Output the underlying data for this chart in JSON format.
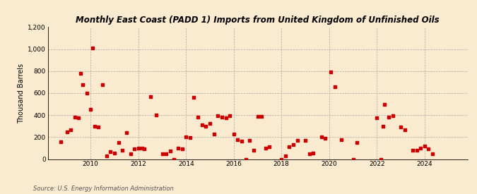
{
  "title": "Monthly East Coast (PADD 1) Imports from United Kingdom of Unfinished Oils",
  "ylabel": "Thousand Barrels",
  "source": "Source: U.S. Energy Information Administration",
  "background_color": "#faebd0",
  "plot_background_color": "#faebd0",
  "marker_color": "#cc0000",
  "marker_size": 6,
  "ylim": [
    0,
    1200
  ],
  "yticks": [
    0,
    200,
    400,
    600,
    800,
    1000,
    1200
  ],
  "ytick_labels": [
    "0",
    "200",
    "400",
    "600",
    "800",
    "1,000",
    "1,200"
  ],
  "xticks": [
    2010,
    2012,
    2014,
    2016,
    2018,
    2020,
    2022,
    2024
  ],
  "xlim": [
    2008.2,
    2025.8
  ],
  "data": [
    [
      2008.75,
      160
    ],
    [
      2009.0,
      245
    ],
    [
      2009.17,
      265
    ],
    [
      2009.33,
      380
    ],
    [
      2009.5,
      375
    ],
    [
      2009.58,
      780
    ],
    [
      2009.67,
      680
    ],
    [
      2009.83,
      600
    ],
    [
      2010.0,
      450
    ],
    [
      2010.08,
      1010
    ],
    [
      2010.17,
      300
    ],
    [
      2010.33,
      290
    ],
    [
      2010.5,
      680
    ],
    [
      2010.67,
      30
    ],
    [
      2010.83,
      70
    ],
    [
      2011.0,
      55
    ],
    [
      2011.17,
      150
    ],
    [
      2011.33,
      80
    ],
    [
      2011.5,
      240
    ],
    [
      2011.67,
      50
    ],
    [
      2011.83,
      95
    ],
    [
      2012.0,
      100
    ],
    [
      2012.17,
      100
    ],
    [
      2012.25,
      90
    ],
    [
      2012.5,
      570
    ],
    [
      2012.75,
      400
    ],
    [
      2013.0,
      50
    ],
    [
      2013.17,
      45
    ],
    [
      2013.33,
      75
    ],
    [
      2013.5,
      0
    ],
    [
      2013.67,
      100
    ],
    [
      2013.83,
      95
    ],
    [
      2014.0,
      200
    ],
    [
      2014.17,
      195
    ],
    [
      2014.33,
      560
    ],
    [
      2014.5,
      380
    ],
    [
      2014.67,
      310
    ],
    [
      2014.83,
      300
    ],
    [
      2015.0,
      325
    ],
    [
      2015.17,
      230
    ],
    [
      2015.33,
      395
    ],
    [
      2015.5,
      385
    ],
    [
      2015.67,
      375
    ],
    [
      2015.83,
      395
    ],
    [
      2016.0,
      230
    ],
    [
      2016.17,
      175
    ],
    [
      2016.33,
      165
    ],
    [
      2016.5,
      0
    ],
    [
      2016.67,
      170
    ],
    [
      2016.83,
      80
    ],
    [
      2017.0,
      390
    ],
    [
      2017.17,
      390
    ],
    [
      2017.33,
      100
    ],
    [
      2017.5,
      115
    ],
    [
      2018.0,
      0
    ],
    [
      2018.17,
      30
    ],
    [
      2018.33,
      115
    ],
    [
      2018.5,
      130
    ],
    [
      2018.67,
      170
    ],
    [
      2019.0,
      170
    ],
    [
      2019.17,
      45
    ],
    [
      2019.33,
      55
    ],
    [
      2019.67,
      200
    ],
    [
      2019.83,
      190
    ],
    [
      2020.08,
      790
    ],
    [
      2020.25,
      660
    ],
    [
      2020.5,
      175
    ],
    [
      2021.0,
      0
    ],
    [
      2021.17,
      150
    ],
    [
      2022.0,
      375
    ],
    [
      2022.17,
      0
    ],
    [
      2022.25,
      300
    ],
    [
      2022.33,
      500
    ],
    [
      2022.5,
      385
    ],
    [
      2022.67,
      395
    ],
    [
      2023.0,
      295
    ],
    [
      2023.17,
      265
    ],
    [
      2023.5,
      80
    ],
    [
      2023.67,
      80
    ],
    [
      2023.83,
      100
    ],
    [
      2024.0,
      120
    ],
    [
      2024.17,
      90
    ],
    [
      2024.33,
      50
    ]
  ]
}
